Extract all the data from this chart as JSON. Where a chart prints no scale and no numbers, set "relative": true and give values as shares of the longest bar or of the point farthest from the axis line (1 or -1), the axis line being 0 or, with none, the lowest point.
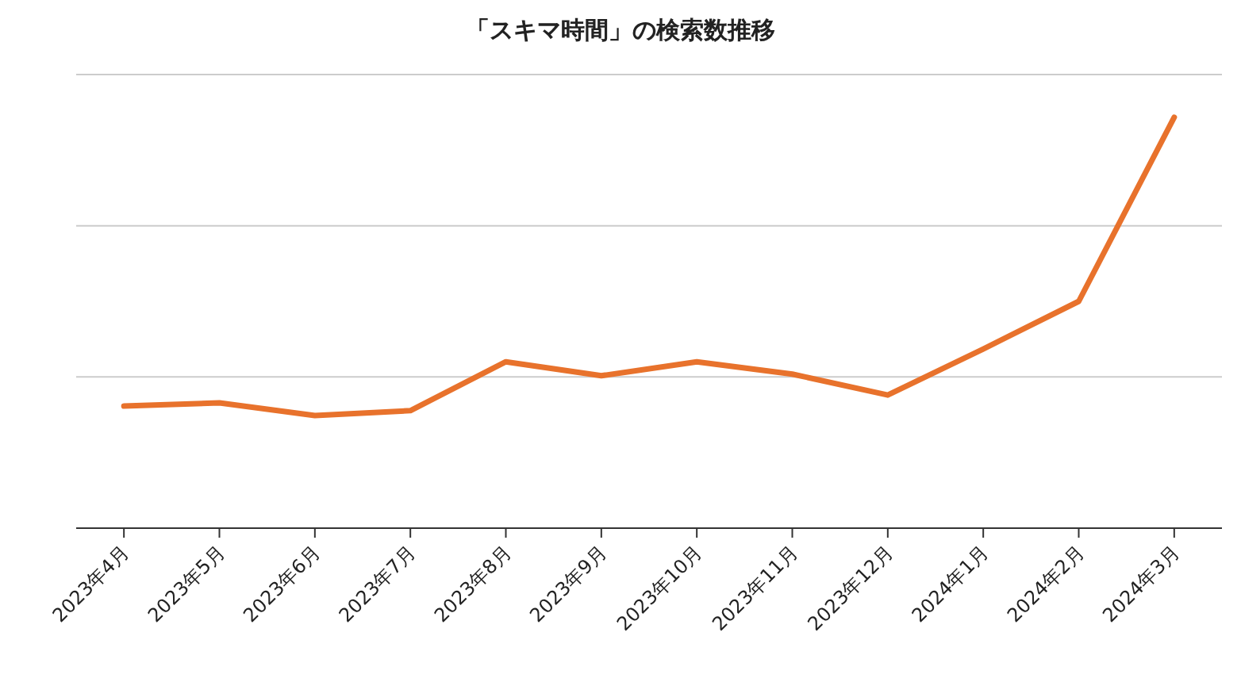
{
  "chart_data": {
    "type": "line",
    "title": "「スキマ時間」の検索数推移",
    "relative": true,
    "ref_lines": [
      {
        "axis": "y",
        "value": 0.368,
        "color": "#cccccc"
      },
      {
        "axis": "y",
        "value": 0.736,
        "color": "#cccccc"
      },
      {
        "axis": "y",
        "value": 1.104,
        "color": "#cccccc"
      }
    ],
    "categories": [
      "2023年4月",
      "2023年5月",
      "2023年6月",
      "2023年7月",
      "2023年8月",
      "2023年9月",
      "2023年10月",
      "2023年11月",
      "2023年12月",
      "2024年1月",
      "2024年2月",
      "2024年3月"
    ],
    "series": [
      {
        "color": "#e8722c",
        "values": [
          0.297,
          0.305,
          0.274,
          0.286,
          0.405,
          0.371,
          0.405,
          0.375,
          0.324,
          0.436,
          0.552,
          1
        ]
      }
    ],
    "marker": "none",
    "line_style": "solid"
  }
}
